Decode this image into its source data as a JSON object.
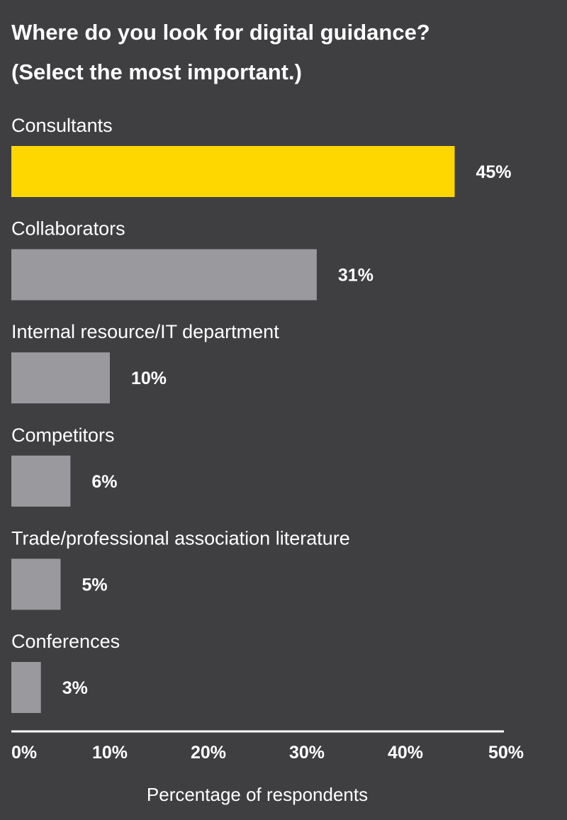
{
  "chart_data": {
    "type": "bar",
    "orientation": "horizontal",
    "title_lines": [
      "Where do you look for digital guidance?",
      "(Select the most important.)"
    ],
    "categories": [
      "Consultants",
      "Collaborators",
      "Internal resource/IT department",
      "Competitors",
      "Trade/professional association literature",
      "Conferences"
    ],
    "values": [
      45,
      31,
      10,
      6,
      5,
      3
    ],
    "value_labels": [
      "45%",
      "31%",
      "10%",
      "6%",
      "5%",
      "3%"
    ],
    "xlim": [
      0,
      50
    ],
    "ticks": [
      0,
      10,
      20,
      30,
      40,
      50
    ],
    "tick_labels": [
      "0%",
      "10%",
      "20%",
      "30%",
      "40%",
      "50%"
    ],
    "xlabel": "Percentage of respondents",
    "ylabel": "",
    "grid": false,
    "legend": "none",
    "colors": {
      "background": "#3f3f42",
      "highlight_bar": "#ffd700",
      "bar": "#9a9a9e",
      "axis": "#ffffff",
      "text": "#ffffff"
    }
  }
}
